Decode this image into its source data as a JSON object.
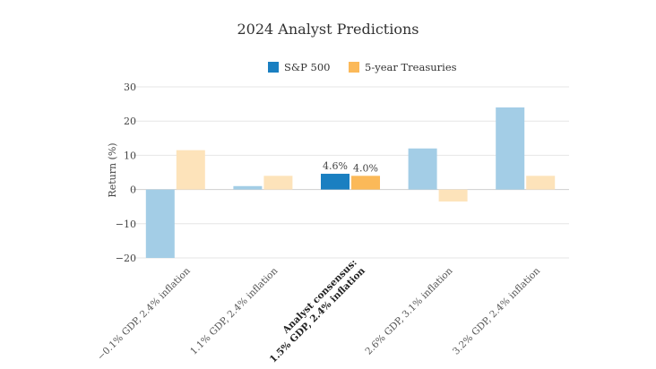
{
  "chart_data": {
    "type": "bar",
    "title": "2024  Analyst Predictions",
    "ylabel": "Return (%)",
    "xlabel": "",
    "ylim": [
      -20,
      30
    ],
    "yticks": [
      "30",
      "20",
      "10",
      "0",
      "−10",
      "−20"
    ],
    "ytick_values": [
      30,
      20,
      10,
      0,
      -10,
      -20
    ],
    "legend_position": "top-center",
    "grid": true,
    "categories": [
      [
        "−0.1% GDP, 2.4% inflation"
      ],
      [
        "1.1% GDP, 2.4% inflation"
      ],
      [
        "Analyst consensus:",
        "1.5% GDP, 2.4% inflation"
      ],
      [
        "2.6% GDP, 3.1% inflation"
      ],
      [
        "3.2% GDP, 2.4% inflation"
      ]
    ],
    "highlight_index": 2,
    "series": [
      {
        "name": "S&P 500",
        "color": "#1a7fc1",
        "faded_color": "#a3cde6",
        "values": [
          -20,
          1,
          4.6,
          12,
          24
        ]
      },
      {
        "name": "5-year Treasuries",
        "color": "#fbb959",
        "faded_color": "#fde3ba",
        "values": [
          11.5,
          4,
          4.0,
          -3.5,
          4
        ]
      }
    ],
    "data_labels": [
      "4.6%",
      "4.0%"
    ]
  }
}
